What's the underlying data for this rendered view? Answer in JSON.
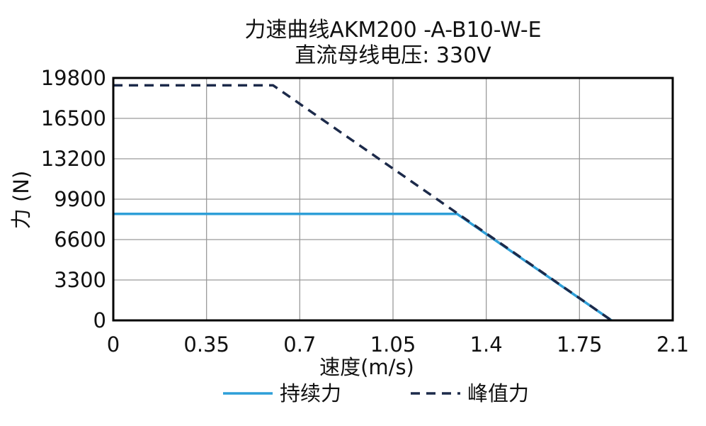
{
  "chart_data": {
    "type": "line",
    "title": "力速曲线AKM200 -A-B10-W-E",
    "subtitle": "直流母线电压: 330V",
    "xlabel": "速度(m/s)",
    "ylabel": "力 (N)",
    "xlim": [
      0,
      2.1
    ],
    "ylim": [
      0,
      19800
    ],
    "xticks": [
      0,
      0.35,
      0.7,
      1.05,
      1.4,
      1.75,
      2.1
    ],
    "xtick_labels": [
      "0",
      "0.35",
      "0.7",
      "1.05",
      "1.4",
      "1.75",
      "2.1"
    ],
    "yticks": [
      0,
      3300,
      6600,
      9900,
      13200,
      16500,
      19800
    ],
    "ytick_labels": [
      "0",
      "3300",
      "6600",
      "9900",
      "13200",
      "16500",
      "19800"
    ],
    "grid": true,
    "legend_position": "bottom",
    "series": [
      {
        "name": "持续力",
        "color": "#2e9fd8",
        "style": "solid",
        "x": [
          0,
          1.29,
          1.87
        ],
        "y": [
          8700,
          8700,
          0
        ]
      },
      {
        "name": "峰值力",
        "color": "#1c2a4a",
        "style": "dashed",
        "x": [
          0,
          0.6,
          1.87
        ],
        "y": [
          19200,
          19200,
          0
        ]
      }
    ]
  }
}
